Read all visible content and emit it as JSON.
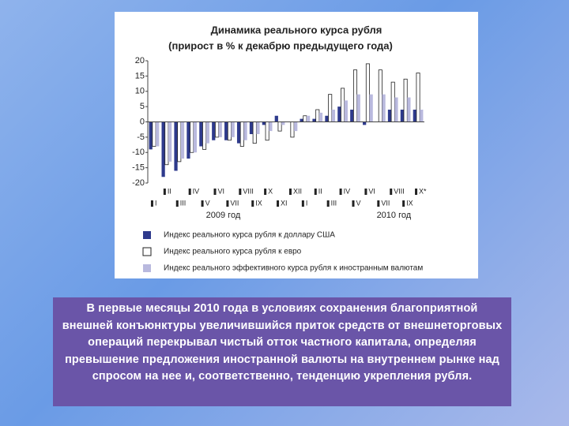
{
  "chart_data": {
    "type": "bar",
    "title": "Динамика реального курса рубля",
    "subtitle": "(прирост в % к декабрю предыдущего года)",
    "categories": [
      "I",
      "II",
      "III",
      "IV",
      "V",
      "VI",
      "VII",
      "VIII",
      "IX",
      "X",
      "XI",
      "XII",
      "I",
      "II",
      "III",
      "IV",
      "V",
      "VI",
      "VII",
      "VIII",
      "IX",
      "X*"
    ],
    "year_labels": [
      "2009 год",
      "2010 год"
    ],
    "series": [
      {
        "name": "Индекс реального курса рубля к доллару США",
        "color": "#2e3a8c",
        "values": [
          -9,
          -18,
          -16,
          -12,
          -8,
          -6,
          -6,
          -7,
          -4,
          -1,
          2,
          0,
          1,
          1,
          2,
          5,
          4,
          -1,
          0,
          4,
          4,
          4
        ]
      },
      {
        "name": "Индекс реального курса рубля к евро",
        "color": "#ffffff",
        "values": [
          -8,
          -14,
          -13,
          -10,
          -9,
          -5,
          -6,
          -8,
          -7,
          -6,
          -3,
          -5,
          2,
          4,
          9,
          11,
          17,
          19,
          17,
          13,
          14,
          16
        ]
      },
      {
        "name": "Индекс реального эффективного курса рубля к иностранным валютам",
        "color": "#b9b9de",
        "values": [
          -8,
          -13,
          -12,
          -10,
          -7,
          -5,
          -5,
          -6,
          -4,
          -3,
          -1,
          -3,
          2,
          3,
          4,
          7,
          9,
          9,
          9,
          8,
          8,
          4
        ]
      }
    ],
    "ylim": [
      -20,
      20
    ],
    "yticks": [
      -20,
      -15,
      -10,
      -5,
      0,
      5,
      10,
      15,
      20
    ],
    "grid": false
  },
  "caption": "В первые месяцы 2010 года в условиях сохранения благоприятной внешней конъюнктуры увеличившийся приток средств от внешнеторговых операций перекрывал чистый отток частного капитала, определяя превышение предложения иностранной валюты на внутреннем рынке над спросом на нее и, соответственно, тенденцию укрепления рубля."
}
